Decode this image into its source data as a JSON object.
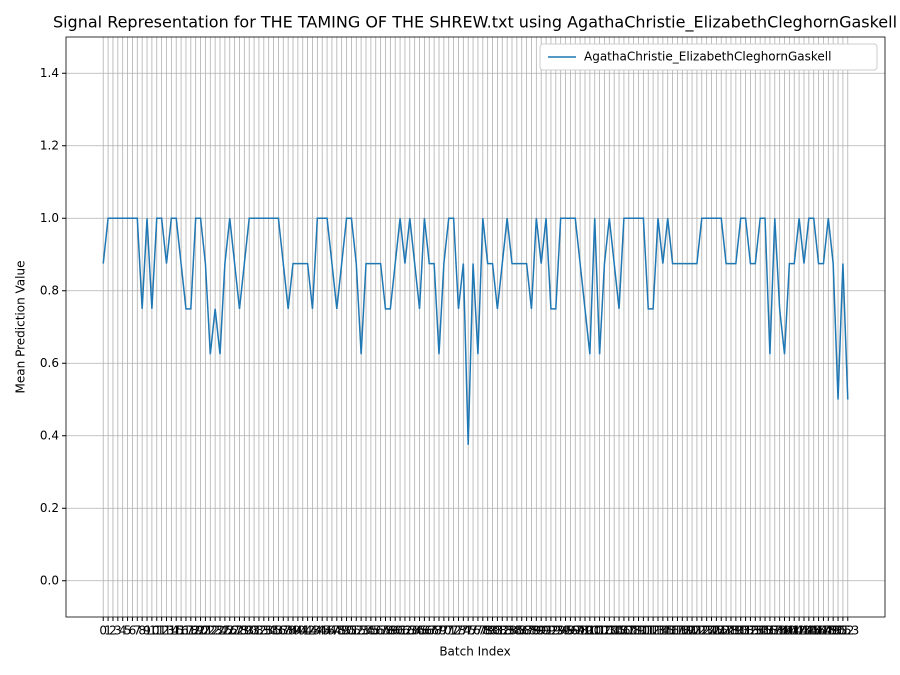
{
  "chart_data": {
    "type": "line",
    "title": "Signal Representation for THE TAMING OF THE SHREW.txt using AgathaChristie_ElizabethCleghornGaskell",
    "xlabel": "Batch Index",
    "ylabel": "Mean Prediction Value",
    "x": [
      0,
      1,
      2,
      3,
      4,
      5,
      6,
      7,
      8,
      9,
      10,
      11,
      12,
      13,
      14,
      15,
      16,
      17,
      18,
      19,
      20,
      21,
      22,
      23,
      24,
      25,
      26,
      27,
      28,
      29,
      30,
      31,
      32,
      33,
      34,
      35,
      36,
      37,
      38,
      39,
      40,
      41,
      42,
      43,
      44,
      45,
      46,
      47,
      48,
      49,
      50,
      51,
      52,
      53,
      54,
      55,
      56,
      57,
      58,
      59,
      60,
      61,
      62,
      63,
      64,
      65,
      66,
      67,
      68,
      69,
      70,
      71,
      72,
      73,
      74,
      75,
      76,
      77,
      78,
      79,
      80,
      81,
      82,
      83,
      84,
      85,
      86,
      87,
      88,
      89,
      90,
      91,
      92,
      93,
      94,
      95,
      96,
      97,
      98,
      99,
      100,
      101,
      102,
      103,
      104,
      105,
      106,
      107,
      108,
      109,
      110,
      111,
      112,
      113,
      114,
      115,
      116,
      117,
      118,
      119,
      120,
      121,
      122,
      123,
      124,
      125,
      126,
      127,
      128,
      129,
      130,
      131,
      132,
      133,
      134,
      135,
      136,
      137,
      138,
      139,
      140,
      141,
      142,
      143,
      144,
      145,
      146,
      147,
      148,
      149,
      150,
      151,
      152,
      153
    ],
    "series": [
      {
        "name": "AgathaChristie_ElizabethCleghornGaskell",
        "color": "#1f77b4",
        "values": [
          0.875,
          1,
          1,
          1,
          1,
          1,
          1,
          1,
          0.75,
          1,
          0.75,
          1,
          1,
          0.875,
          1,
          1,
          0.875,
          0.75,
          0.75,
          1,
          1,
          0.875,
          0.625,
          0.75,
          0.625,
          0.875,
          1,
          0.875,
          0.75,
          0.875,
          1,
          1,
          1,
          1,
          1,
          1,
          1,
          0.875,
          0.75,
          0.875,
          0.875,
          0.875,
          0.875,
          0.75,
          1,
          1,
          1,
          0.875,
          0.75,
          0.875,
          1,
          1,
          0.875,
          0.625,
          0.875,
          0.875,
          0.875,
          0.875,
          0.75,
          0.75,
          0.875,
          1,
          0.875,
          1,
          0.875,
          0.75,
          1,
          0.875,
          0.875,
          0.625,
          0.875,
          1,
          1,
          0.75,
          0.875,
          0.375,
          0.875,
          0.625,
          1,
          0.875,
          0.875,
          0.75,
          0.875,
          1,
          0.875,
          0.875,
          0.875,
          0.875,
          0.75,
          1,
          0.875,
          1,
          0.75,
          0.75,
          1,
          1,
          1,
          1,
          0.875,
          0.75,
          0.625,
          1,
          0.625,
          0.875,
          1,
          0.875,
          0.75,
          1,
          1,
          1,
          1,
          1,
          0.75,
          0.75,
          1,
          0.875,
          1,
          0.875,
          0.875,
          0.875,
          0.875,
          0.875,
          0.875,
          1,
          1,
          1,
          1,
          1,
          0.875,
          0.875,
          0.875,
          1,
          1,
          0.875,
          0.875,
          1,
          1,
          0.625,
          1,
          0.75,
          0.625,
          0.875,
          0.875,
          1,
          0.875,
          1,
          1,
          0.875,
          0.875,
          1,
          0.875,
          0.5,
          0.875,
          0.5
        ]
      }
    ],
    "xlim": [
      -7.65,
      160.65
    ],
    "xticks": [
      0,
      1,
      2,
      3,
      4,
      5,
      6,
      7,
      8,
      9,
      10,
      11,
      12,
      13,
      14,
      15,
      16,
      17,
      18,
      19,
      20,
      21,
      22,
      23,
      24,
      25,
      26,
      27,
      28,
      29,
      30,
      31,
      32,
      33,
      34,
      35,
      36,
      37,
      38,
      39,
      40,
      41,
      42,
      43,
      44,
      45,
      46,
      47,
      48,
      49,
      50,
      51,
      52,
      53,
      54,
      55,
      56,
      57,
      58,
      59,
      60,
      61,
      62,
      63,
      64,
      65,
      66,
      67,
      68,
      69,
      70,
      71,
      72,
      73,
      74,
      75,
      76,
      77,
      78,
      79,
      80,
      81,
      82,
      83,
      84,
      85,
      86,
      87,
      88,
      89,
      90,
      91,
      92,
      93,
      94,
      95,
      96,
      97,
      98,
      99,
      100,
      101,
      102,
      103,
      104,
      105,
      106,
      107,
      108,
      109,
      110,
      111,
      112,
      113,
      114,
      115,
      116,
      117,
      118,
      119,
      120,
      121,
      122,
      123,
      124,
      125,
      126,
      127,
      128,
      129,
      130,
      131,
      132,
      133,
      134,
      135,
      136,
      137,
      138,
      139,
      140,
      141,
      142,
      143,
      144,
      145,
      146,
      147,
      148,
      149,
      150,
      151,
      152,
      153
    ],
    "ylim": [
      -0.1,
      1.5
    ],
    "yticks": [
      {
        "value": 0,
        "label": "0.0"
      },
      0.2,
      0.4,
      0.6,
      0.8,
      {
        "value": 1,
        "label": "1.0"
      },
      1.2,
      1.4
    ],
    "grid": true,
    "legend": "upper right"
  }
}
